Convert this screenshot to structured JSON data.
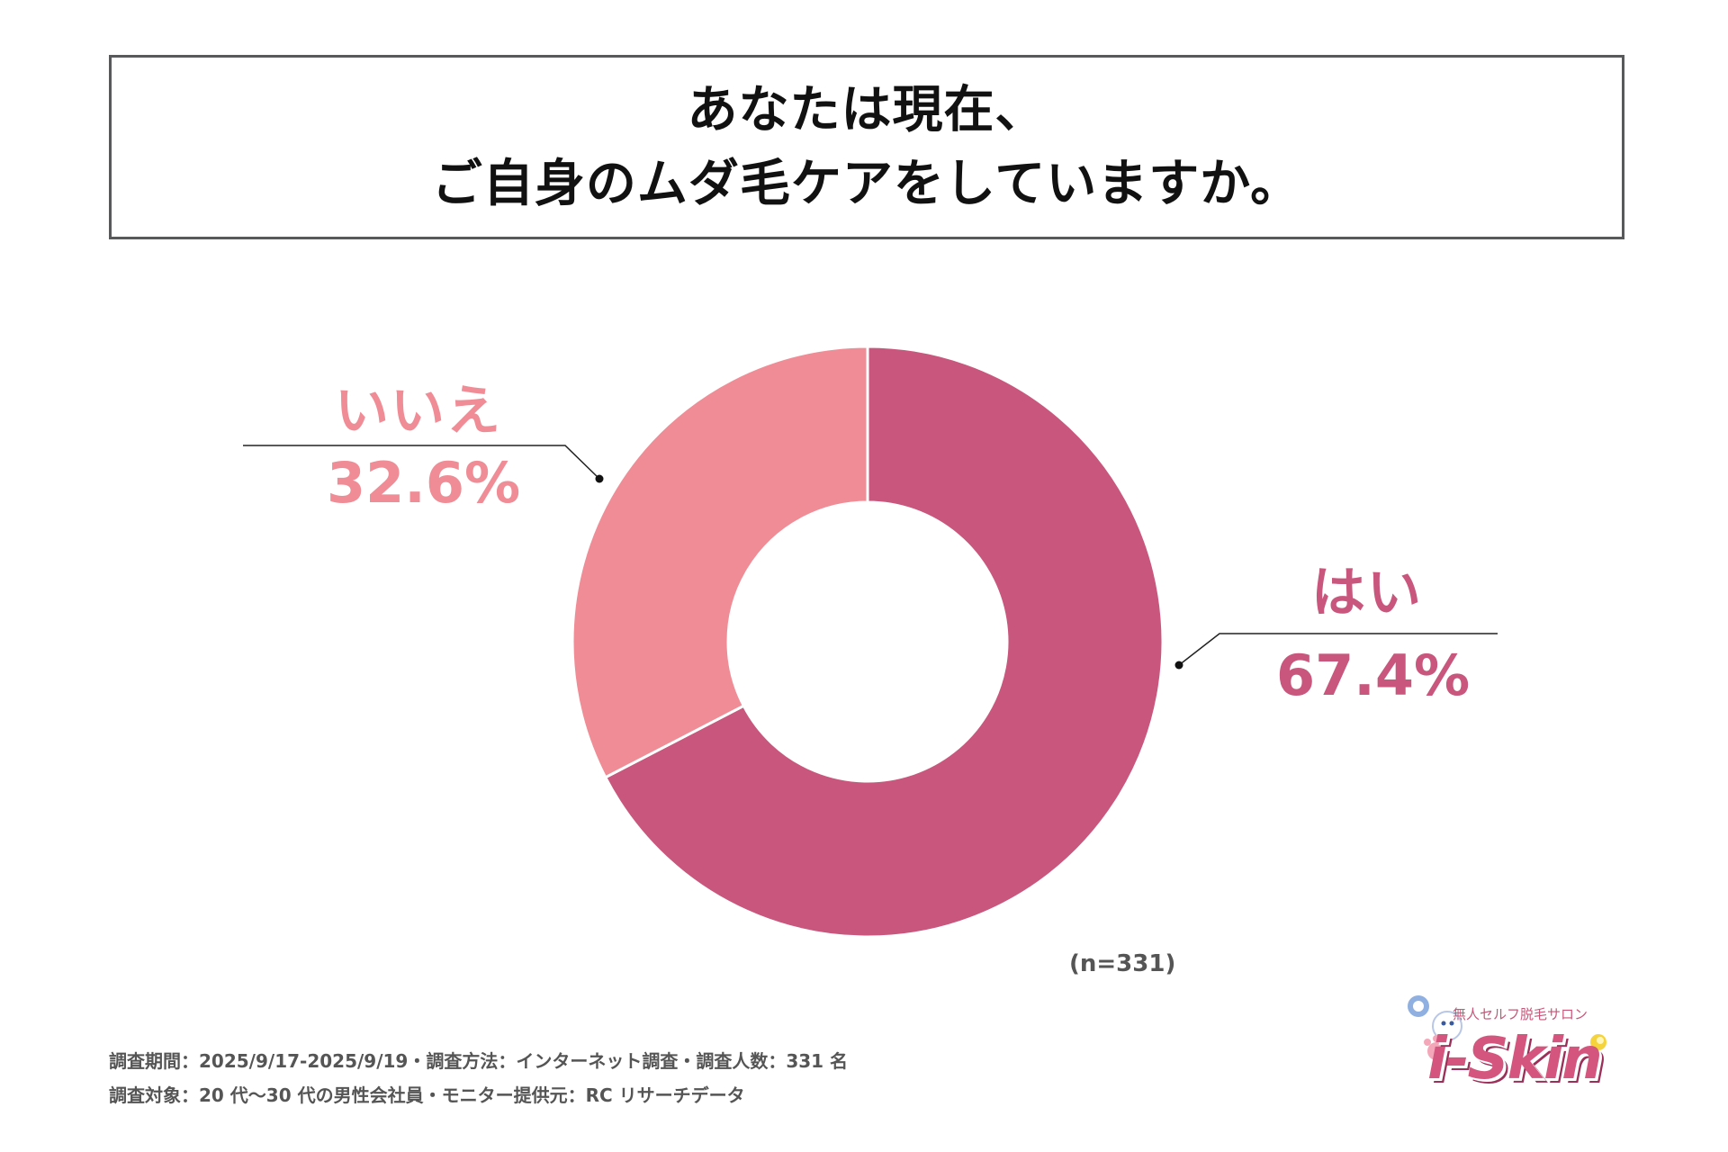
{
  "title": {
    "line1": "あなたは現在、",
    "line2": "ご自身のムダ毛ケアをしていますか。"
  },
  "chart_data": {
    "type": "pie",
    "donut": true,
    "categories": [
      "はい",
      "いいえ"
    ],
    "values": [
      67.4,
      32.6
    ],
    "value_labels": [
      "67.4%",
      "32.6%"
    ],
    "colors": [
      "#c8567d",
      "#f08c95"
    ],
    "title": "あなたは現在、ご自身のムダ毛ケアをしていますか。"
  },
  "n_note": "(n=331)",
  "footer": {
    "line1": "調査期間：2025/9/17-2025/9/19・調査方法：インターネット調査・調査人数：331 名",
    "line2": "調査対象：20 代〜30 代の男性会社員・モニター提供元：RC リサーチデータ"
  },
  "logo": {
    "tagline": "無人セルフ脱毛サロン",
    "wordmark": "i-Skin"
  }
}
